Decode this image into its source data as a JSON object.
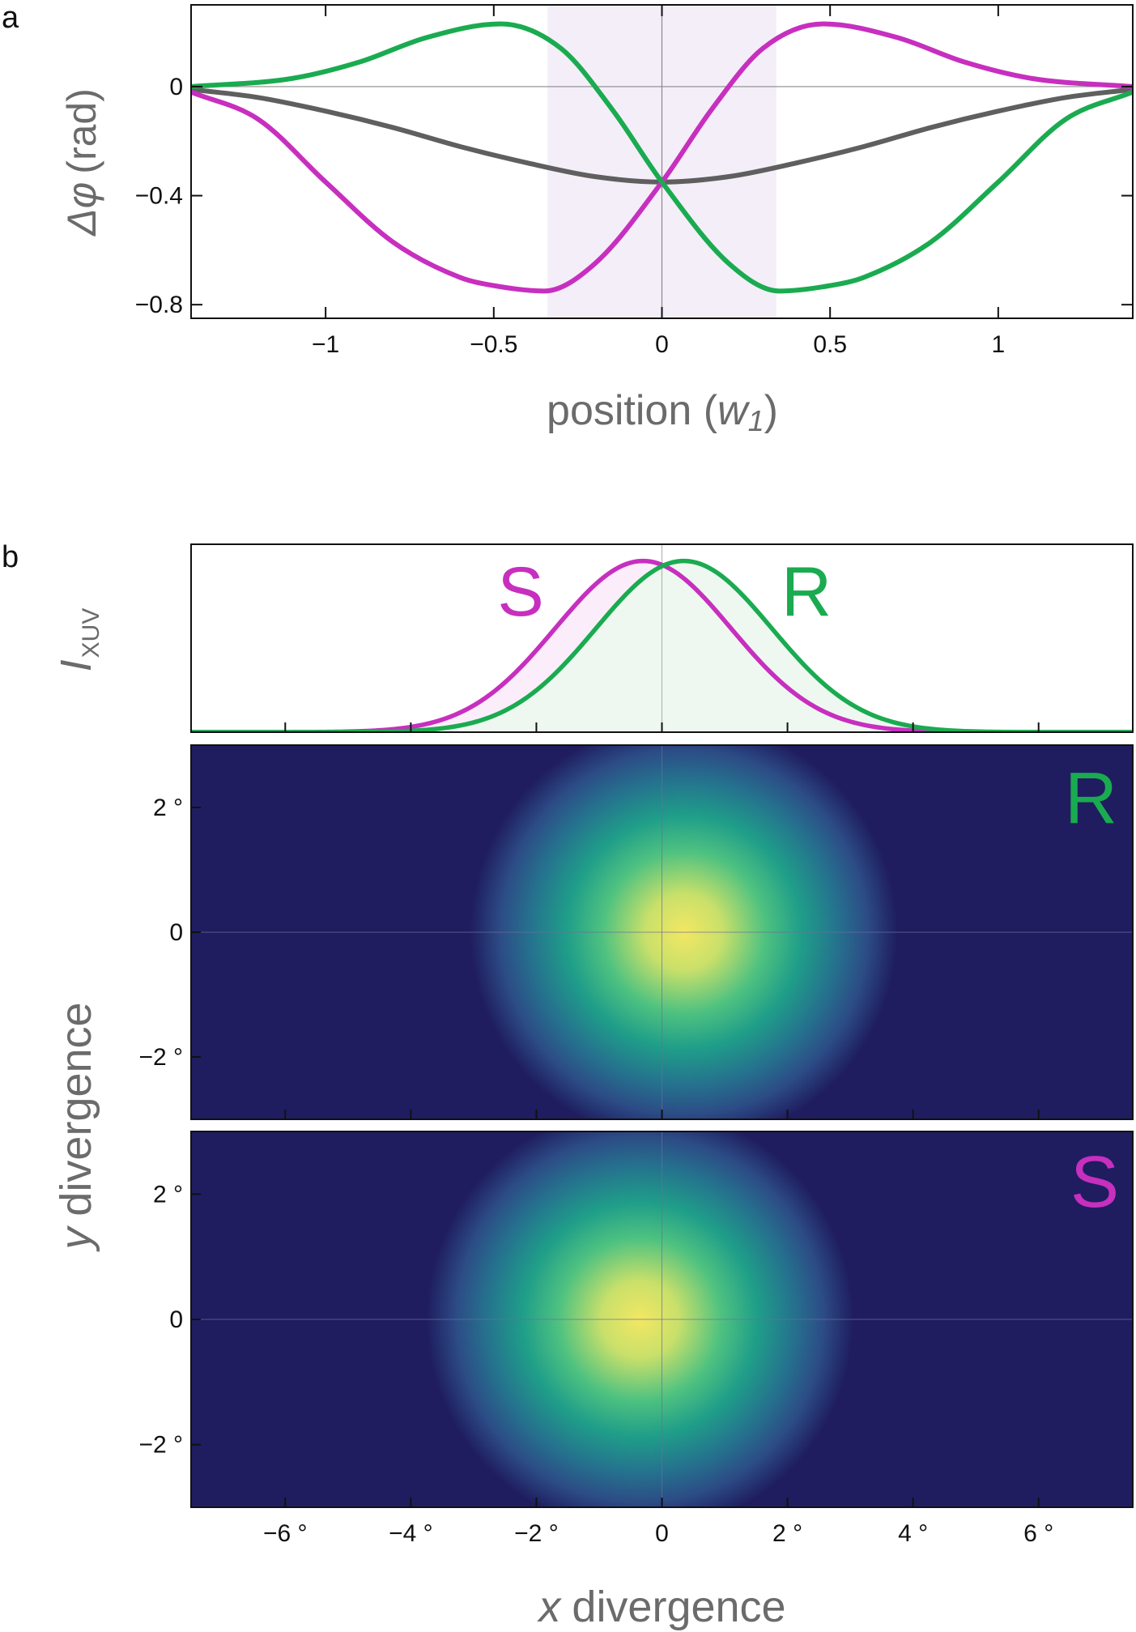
{
  "colors": {
    "green": "#1aab50",
    "magenta": "#c72fbf",
    "gray_curve": "#5f5f5f",
    "axis_label": "#6b6b6b",
    "shade": "#f4eef8",
    "dark_bg": "#1f1d5f"
  },
  "panel_a": {
    "letter": "a",
    "ylabel_symbol": "Δφ",
    "ylabel_unit": "(rad)",
    "xlabel_text": "position (",
    "xlabel_var": "w",
    "xlabel_sub": "1",
    "xlabel_close": ")"
  },
  "panel_b": {
    "letter": "b",
    "profile_ylabel": "I",
    "profile_ylabel_sub": "XUV",
    "label_S": "S",
    "label_R": "R",
    "map_R_label": "R",
    "map_S_label": "S",
    "ylabel_var": "y",
    "ylabel_text": "divergence",
    "xlabel_var": "x",
    "xlabel_text": "divergence"
  },
  "chart_data": [
    {
      "id": "phase",
      "type": "line",
      "xlabel": "position (w1)",
      "ylabel": "Δφ (rad)",
      "xlim": [
        -1.4,
        1.4
      ],
      "ylim": [
        -0.85,
        0.3
      ],
      "xticks": [
        -1,
        -0.5,
        0,
        0.5,
        1
      ],
      "xtick_labels": [
        "−1",
        "−0.5",
        "0",
        "0.5",
        "1"
      ],
      "yticks": [
        0,
        -0.4,
        -0.8
      ],
      "ytick_labels": [
        "0",
        "−0.4",
        "−0.8"
      ],
      "shaded_x_range": [
        -0.34,
        0.34
      ],
      "series": [
        {
          "name": "gray",
          "x": [
            -1.4,
            -1.2,
            -1.0,
            -0.8,
            -0.6,
            -0.4,
            -0.2,
            0.0,
            0.2,
            0.4,
            0.6,
            0.8,
            1.0,
            1.2,
            1.4
          ],
          "values": [
            -0.01,
            -0.04,
            -0.09,
            -0.15,
            -0.22,
            -0.28,
            -0.33,
            -0.35,
            -0.33,
            -0.28,
            -0.22,
            -0.15,
            -0.09,
            -0.04,
            -0.01
          ]
        },
        {
          "name": "magenta",
          "x": [
            -1.4,
            -1.2,
            -1.0,
            -0.8,
            -0.6,
            -0.5,
            -0.35,
            -0.2,
            0.0,
            0.15,
            0.3,
            0.48,
            0.7,
            0.9,
            1.1,
            1.4
          ],
          "values": [
            -0.02,
            -0.12,
            -0.35,
            -0.57,
            -0.7,
            -0.73,
            -0.75,
            -0.65,
            -0.35,
            -0.08,
            0.14,
            0.23,
            0.18,
            0.09,
            0.03,
            0.0
          ]
        },
        {
          "name": "green",
          "x": [
            -1.4,
            -1.1,
            -0.9,
            -0.7,
            -0.48,
            -0.3,
            -0.15,
            0.0,
            0.2,
            0.35,
            0.5,
            0.6,
            0.8,
            1.0,
            1.2,
            1.4
          ],
          "values": [
            0.0,
            0.03,
            0.09,
            0.18,
            0.23,
            0.14,
            -0.08,
            -0.35,
            -0.65,
            -0.75,
            -0.73,
            -0.7,
            -0.57,
            -0.35,
            -0.12,
            -0.02
          ]
        }
      ]
    },
    {
      "id": "profile",
      "type": "area",
      "xlim": [
        -7.5,
        7.5
      ],
      "ylim": [
        0,
        1.05
      ],
      "series": [
        {
          "name": "S",
          "center": -0.3,
          "width": 1.4,
          "peak": 1.0
        },
        {
          "name": "R",
          "center": 0.35,
          "width": 1.4,
          "peak": 1.0
        }
      ]
    },
    {
      "id": "map_R",
      "type": "heatmap",
      "label": "R",
      "xlim": [
        -7.5,
        7.5
      ],
      "ylim": [
        -3,
        3
      ],
      "peak": [
        0.35,
        0
      ],
      "yticks": [
        2,
        0,
        -2
      ],
      "ytick_labels": [
        "2 °",
        "0",
        "−2 °"
      ]
    },
    {
      "id": "map_S",
      "type": "heatmap",
      "label": "S",
      "xlim": [
        -7.5,
        7.5
      ],
      "ylim": [
        -3,
        3
      ],
      "peak": [
        -0.35,
        0
      ],
      "xticks": [
        -6,
        -4,
        -2,
        0,
        2,
        4,
        6
      ],
      "xtick_labels": [
        "−6 °",
        "−4 °",
        "−2 °",
        "0",
        "2 °",
        "4 °",
        "6 °"
      ],
      "yticks": [
        2,
        0,
        -2
      ],
      "ytick_labels": [
        "2 °",
        "0",
        "−2 °"
      ]
    }
  ]
}
